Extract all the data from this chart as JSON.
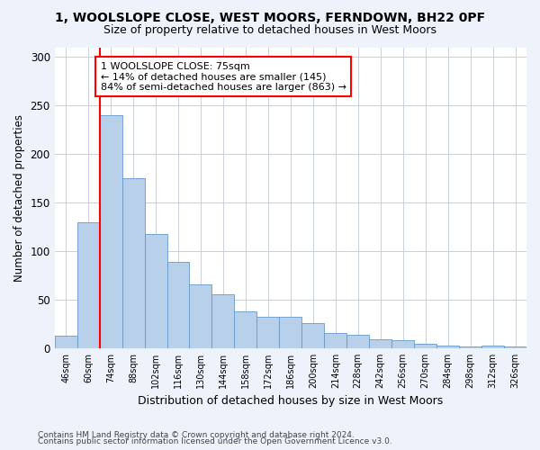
{
  "title1": "1, WOOLSLOPE CLOSE, WEST MOORS, FERNDOWN, BH22 0PF",
  "title2": "Size of property relative to detached houses in West Moors",
  "xlabel": "Distribution of detached houses by size in West Moors",
  "ylabel": "Number of detached properties",
  "categories": [
    "46sqm",
    "60sqm",
    "74sqm",
    "88sqm",
    "102sqm",
    "116sqm",
    "130sqm",
    "144sqm",
    "158sqm",
    "172sqm",
    "186sqm",
    "200sqm",
    "214sqm",
    "228sqm",
    "242sqm",
    "256sqm",
    "270sqm",
    "284sqm",
    "298sqm",
    "312sqm",
    "326sqm"
  ],
  "values": [
    13,
    130,
    240,
    175,
    118,
    89,
    66,
    56,
    38,
    32,
    32,
    26,
    16,
    14,
    9,
    8,
    5,
    3,
    2,
    3,
    2
  ],
  "bar_color": "#b8d0ea",
  "bar_edge_color": "#6699cc",
  "red_line_x": 1.5,
  "annotation_text": "1 WOOLSLOPE CLOSE: 75sqm\n← 14% of detached houses are smaller (145)\n84% of semi-detached houses are larger (863) →",
  "annotation_box_color": "white",
  "annotation_box_edge": "red",
  "ylim": [
    0,
    310
  ],
  "yticks": [
    0,
    50,
    100,
    150,
    200,
    250,
    300
  ],
  "footer1": "Contains HM Land Registry data © Crown copyright and database right 2024.",
  "footer2": "Contains public sector information licensed under the Open Government Licence v3.0.",
  "bg_color": "#eef2fb",
  "plot_bg_color": "white",
  "grid_color": "#c8d0e0"
}
